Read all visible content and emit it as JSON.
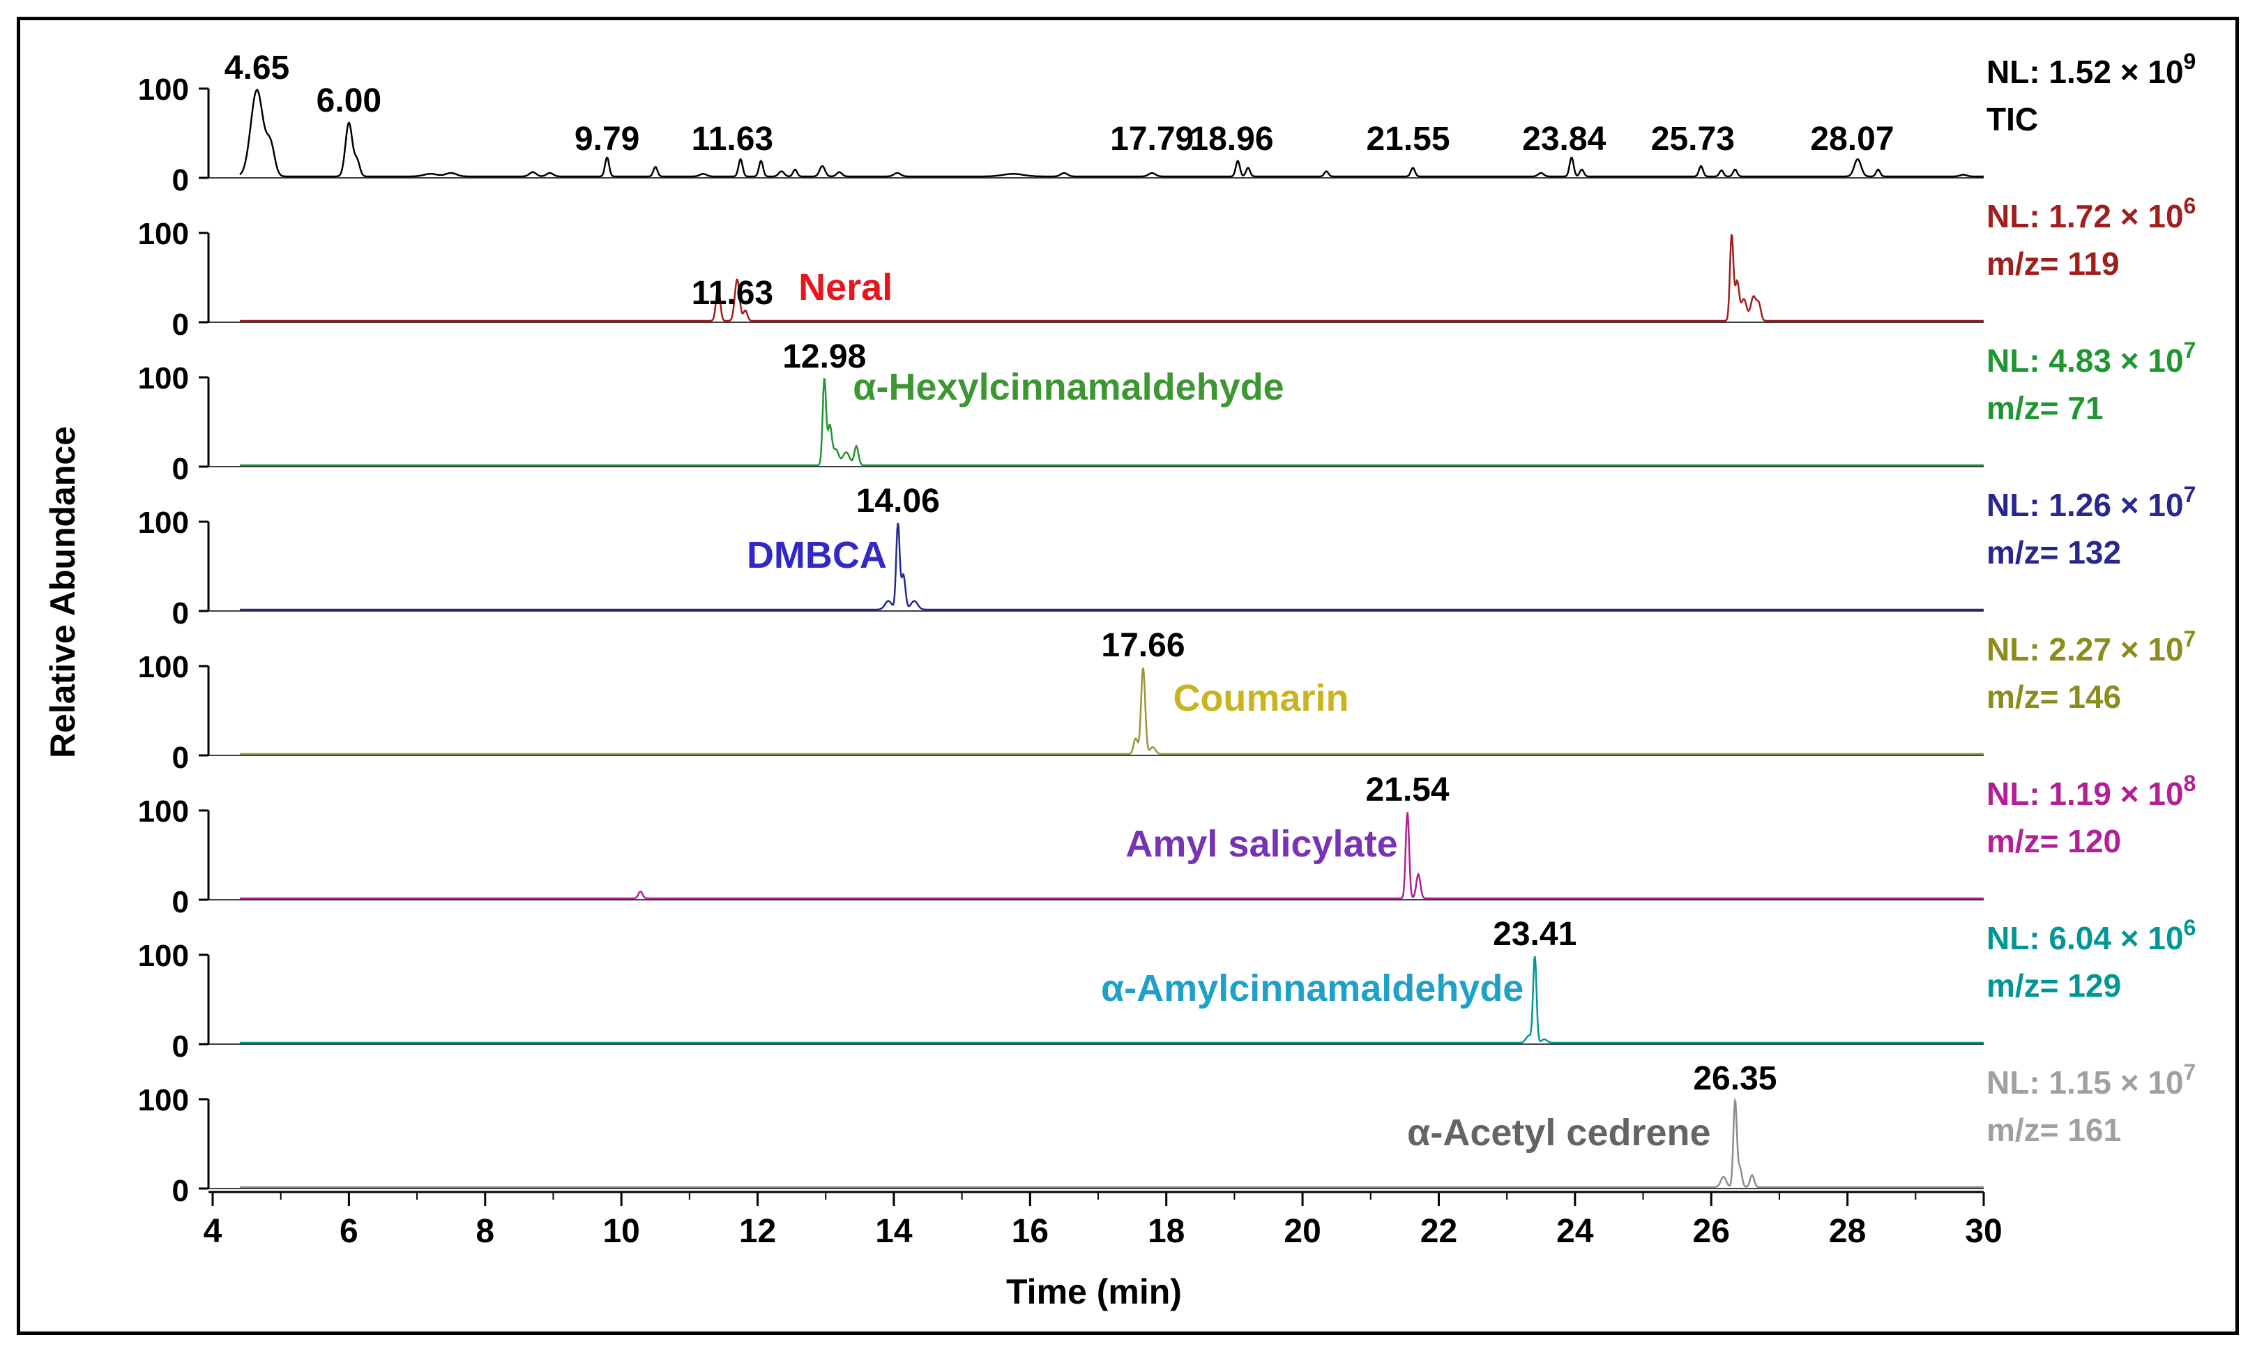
{
  "chart_data": {
    "type": "line",
    "title": "",
    "xlabel": "Time (min)",
    "ylabel": "Relative Abundance",
    "xlim": [
      4,
      30
    ],
    "x_ticks": [
      "4",
      "6",
      "8",
      "10",
      "12",
      "14",
      "16",
      "18",
      "20",
      "22",
      "24",
      "26",
      "28",
      "30"
    ],
    "ylim": [
      0,
      100
    ],
    "y_ticks": [
      "0",
      "100"
    ],
    "grid": false,
    "panels": [
      {
        "name": "TIC",
        "nl_label": "NL: 1.52 × 10",
        "nl_exp": "9",
        "trace_label": "TIC",
        "color": "#000000",
        "label_color": "#000000",
        "compound": "",
        "compound_color": "#000000",
        "annotations": [
          "4.65",
          "6.00",
          "9.79",
          "11.63",
          "17.79",
          "18.96",
          "21.55",
          "23.84",
          "25.73",
          "28.07"
        ],
        "annotation_times": [
          4.65,
          6.0,
          9.79,
          11.63,
          17.79,
          18.96,
          21.55,
          23.84,
          25.73,
          28.07
        ],
        "peaks": [
          [
            4.65,
            100,
            0.09
          ],
          [
            4.85,
            35,
            0.06
          ],
          [
            6.0,
            62,
            0.05
          ],
          [
            6.12,
            18,
            0.04
          ],
          [
            7.2,
            3,
            0.1
          ],
          [
            7.5,
            4,
            0.08
          ],
          [
            8.7,
            5,
            0.05
          ],
          [
            8.95,
            4,
            0.05
          ],
          [
            9.79,
            22,
            0.03
          ],
          [
            10.5,
            11,
            0.03
          ],
          [
            11.2,
            3,
            0.05
          ],
          [
            11.75,
            20,
            0.03
          ],
          [
            12.05,
            18,
            0.03
          ],
          [
            12.35,
            6,
            0.04
          ],
          [
            12.55,
            8,
            0.03
          ],
          [
            12.95,
            12,
            0.04
          ],
          [
            13.2,
            5,
            0.04
          ],
          [
            14.05,
            4,
            0.05
          ],
          [
            15.75,
            3,
            0.15
          ],
          [
            16.5,
            4,
            0.05
          ],
          [
            17.79,
            4,
            0.05
          ],
          [
            19.05,
            18,
            0.03
          ],
          [
            19.2,
            10,
            0.03
          ],
          [
            20.35,
            6,
            0.03
          ],
          [
            21.62,
            10,
            0.03
          ],
          [
            23.5,
            4,
            0.04
          ],
          [
            23.95,
            22,
            0.03
          ],
          [
            24.1,
            8,
            0.03
          ],
          [
            25.85,
            12,
            0.03
          ],
          [
            26.15,
            7,
            0.03
          ],
          [
            26.35,
            8,
            0.03
          ],
          [
            28.15,
            20,
            0.05
          ],
          [
            28.45,
            8,
            0.03
          ],
          [
            29.7,
            2,
            0.05
          ]
        ],
        "x_range": [
          4.4,
          30
        ]
      },
      {
        "name": "m/z 119",
        "nl_label": "NL: 1.72 × 10",
        "nl_exp": "6",
        "trace_label": "m/z= 119",
        "color": "#a01e1e",
        "label_color": "#a01e1e",
        "compound": "Neral",
        "compound_color": "#e8141e",
        "annotations": [
          "11.63"
        ],
        "annotation_times": [
          11.63
        ],
        "peaks": [
          [
            11.42,
            40,
            0.03
          ],
          [
            11.7,
            48,
            0.035
          ],
          [
            11.82,
            12,
            0.03
          ],
          [
            26.3,
            100,
            0.025
          ],
          [
            26.38,
            45,
            0.03
          ],
          [
            26.48,
            25,
            0.04
          ],
          [
            26.62,
            28,
            0.04
          ],
          [
            26.7,
            18,
            0.03
          ]
        ],
        "x_range": [
          4.4,
          30
        ]
      },
      {
        "name": "m/z 71",
        "nl_label": "NL: 4.83 × 10",
        "nl_exp": "7",
        "trace_label": "m/z= 71",
        "color": "#1e9632",
        "label_color": "#1e9632",
        "compound": "α-Hexylcinnamaldehyde",
        "compound_color": "#3c9632",
        "annotations": [
          "12.98"
        ],
        "annotation_times": [
          12.98
        ],
        "peaks": [
          [
            12.98,
            100,
            0.025
          ],
          [
            13.06,
            45,
            0.03
          ],
          [
            13.15,
            18,
            0.04
          ],
          [
            13.3,
            15,
            0.05
          ],
          [
            13.45,
            22,
            0.03
          ]
        ],
        "x_range": [
          4.4,
          30
        ]
      },
      {
        "name": "m/z 132",
        "nl_label": "NL: 1.26 × 10",
        "nl_exp": "7",
        "trace_label": "m/z= 132",
        "color": "#28288c",
        "label_color": "#28288c",
        "compound": "DMBCA",
        "compound_color": "#3228c8",
        "annotations": [
          "14.06"
        ],
        "annotation_times": [
          14.06
        ],
        "peaks": [
          [
            13.92,
            10,
            0.05
          ],
          [
            14.06,
            100,
            0.025
          ],
          [
            14.14,
            40,
            0.03
          ],
          [
            14.3,
            10,
            0.05
          ]
        ],
        "x_range": [
          4.4,
          30
        ]
      },
      {
        "name": "m/z 146",
        "nl_label": "NL: 2.27 × 10",
        "nl_exp": "7",
        "trace_label": "m/z= 146",
        "color": "#96963c",
        "label_color": "#8c8c1e",
        "compound": "Coumarin",
        "compound_color": "#c8b41e",
        "annotations": [
          "17.66"
        ],
        "annotation_times": [
          17.66
        ],
        "peaks": [
          [
            17.55,
            18,
            0.03
          ],
          [
            17.66,
            100,
            0.03
          ],
          [
            17.8,
            8,
            0.04
          ]
        ],
        "x_range": [
          4.4,
          30
        ]
      },
      {
        "name": "m/z 120",
        "nl_label": "NL: 1.19 × 10",
        "nl_exp": "8",
        "trace_label": "m/z= 120",
        "color": "#b41e96",
        "label_color": "#b41e96",
        "compound": "Amyl salicylate",
        "compound_color": "#7832b4",
        "annotations": [
          "21.54"
        ],
        "annotation_times": [
          21.54
        ],
        "peaks": [
          [
            10.28,
            8,
            0.03
          ],
          [
            21.54,
            100,
            0.025
          ],
          [
            21.7,
            28,
            0.03
          ]
        ],
        "x_range": [
          4.4,
          30
        ]
      },
      {
        "name": "m/z 129",
        "nl_label": "NL: 6.04 × 10",
        "nl_exp": "6",
        "trace_label": "m/z= 129",
        "color": "#009696",
        "label_color": "#009696",
        "compound": "α-Amylcinnamaldehyde",
        "compound_color": "#1ea0c8",
        "annotations": [
          "23.41"
        ],
        "annotation_times": [
          23.41
        ],
        "peaks": [
          [
            23.32,
            8,
            0.04
          ],
          [
            23.41,
            100,
            0.025
          ],
          [
            23.55,
            4,
            0.04
          ]
        ],
        "x_range": [
          4.4,
          30
        ]
      },
      {
        "name": "m/z 161",
        "nl_label": "NL: 1.15 × 10",
        "nl_exp": "7",
        "trace_label": "m/z= 161",
        "color": "#8c8c8c",
        "label_color": "#a0a0a0",
        "compound": "α-Acetyl cedrene",
        "compound_color": "#646464",
        "annotations": [
          "26.35"
        ],
        "annotation_times": [
          26.35
        ],
        "peaks": [
          [
            26.18,
            12,
            0.04
          ],
          [
            26.35,
            100,
            0.025
          ],
          [
            26.42,
            22,
            0.03
          ],
          [
            26.6,
            14,
            0.03
          ]
        ],
        "x_range": [
          4.4,
          30
        ]
      }
    ]
  }
}
